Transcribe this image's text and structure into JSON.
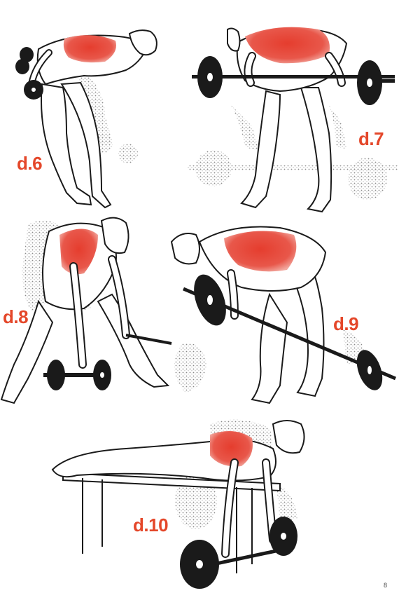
{
  "labels": {
    "d6": "d.6",
    "d7": "d.7",
    "d8": "d.8",
    "d9": "d.9",
    "d10": "d.10"
  },
  "page_number": "8",
  "colors": {
    "label": "#e4472a",
    "muscle_highlight": "#e53d2e",
    "ink": "#1a1a1a",
    "stipple": "#8a8a8a",
    "background": "#ffffff"
  }
}
